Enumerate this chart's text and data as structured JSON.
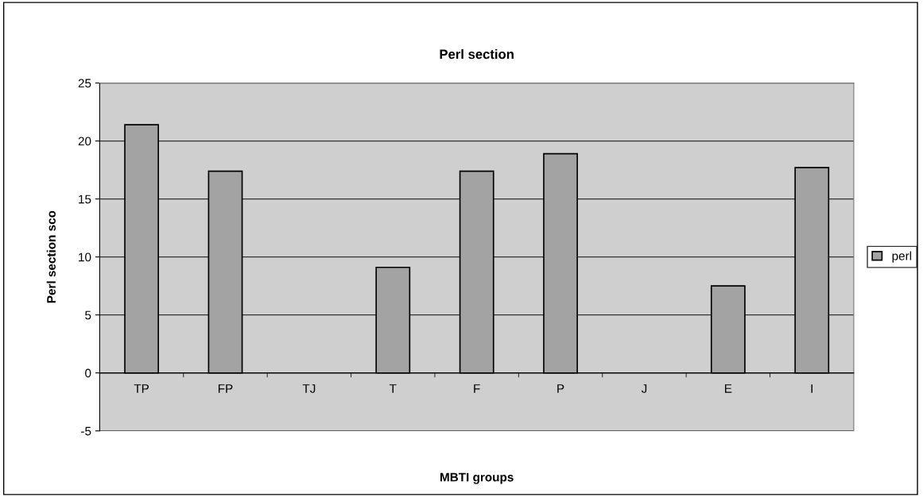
{
  "chart_data": {
    "type": "bar",
    "title": "Perl section",
    "xlabel": "MBTI groups",
    "ylabel": "Perl section sco",
    "categories": [
      "TP",
      "FP",
      "TJ",
      "T",
      "F",
      "P",
      "J",
      "E",
      "I"
    ],
    "series": [
      {
        "name": "perl",
        "color": "#a3a3a3",
        "values": [
          21.4,
          17.4,
          null,
          9.1,
          17.4,
          18.9,
          null,
          7.5,
          17.7
        ]
      }
    ],
    "ylim": [
      -5,
      25
    ],
    "yticks": [
      -5,
      0,
      5,
      10,
      15,
      20,
      25
    ],
    "grid": "y",
    "legend": "right"
  }
}
